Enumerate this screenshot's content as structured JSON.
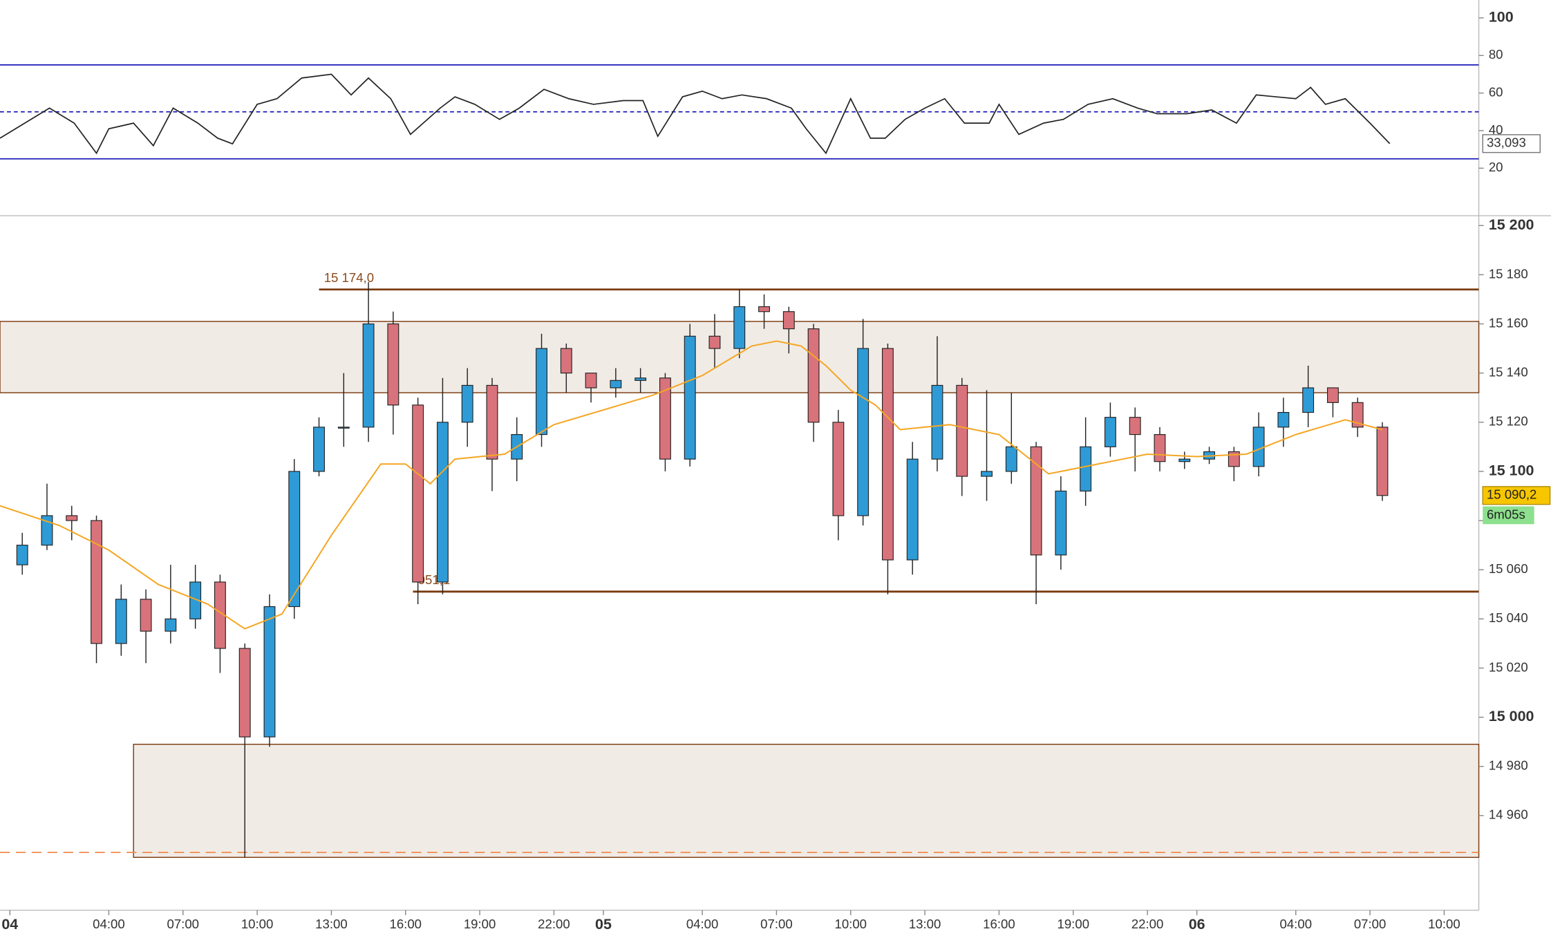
{
  "chart_data": [
    {
      "type": "line",
      "x": [
        -0.4,
        0.6,
        1.6,
        2.6,
        3.5,
        4,
        5,
        5.8,
        6.6,
        7.6,
        8.4,
        9,
        10,
        10.8,
        11.8,
        13,
        13.8,
        14.5,
        15.4,
        16.2,
        17.4,
        18,
        18.8,
        19.8,
        20.6,
        21.6,
        22.6,
        23.6,
        24.8,
        25.6,
        26.2,
        27.2,
        28,
        28.8,
        29.6,
        30.6,
        31.6,
        32.2,
        33,
        34,
        34.8,
        35.4,
        36.2,
        37,
        37.8,
        38.6,
        39.6,
        40,
        40.8,
        41.8,
        42.6,
        43.6,
        44.6,
        45.6,
        46.4,
        47.6,
        48.6,
        49.6,
        50.4,
        51.2,
        52,
        52.6,
        53.2,
        54,
        55,
        55.8
      ],
      "values": [
        36,
        44,
        52,
        44,
        28,
        41,
        44,
        32,
        52,
        44,
        36,
        33,
        54,
        57,
        68,
        70,
        59,
        68,
        57,
        38,
        52,
        58,
        54,
        46,
        52,
        62,
        57,
        54,
        56,
        56,
        37,
        58,
        61,
        57,
        59,
        57,
        52,
        41,
        28,
        57,
        36,
        36,
        46,
        52,
        57,
        44,
        44,
        54,
        38,
        44,
        46,
        54,
        57,
        52,
        49,
        49,
        51,
        44,
        59,
        58,
        57,
        63,
        54,
        57,
        44,
        33.093
      ],
      "color": "#222222",
      "xlim": [
        -0.4,
        59.4
      ],
      "ylim": [
        -5.3,
        109.5
      ],
      "yticks": [
        100,
        80,
        60,
        40,
        20
      ],
      "levels": [
        75,
        50,
        25
      ],
      "level_styles": [
        "solid",
        "dashed",
        "solid"
      ],
      "level_color": "#1a1ab8",
      "last_value": {
        "value": 33.093,
        "label": "33,093"
      }
    },
    {
      "type": "candlestick",
      "x": [
        0.5,
        1.5,
        2.5,
        3.5,
        4.5,
        5.5,
        6.5,
        7.5,
        8.5,
        9.5,
        10.5,
        11.5,
        12.5,
        13.5,
        14.5,
        15.5,
        16.5,
        17.5,
        18.5,
        19.5,
        20.5,
        21.5,
        22.5,
        23.5,
        24.5,
        25.5,
        26.5,
        27.5,
        28.5,
        29.5,
        30.5,
        31.5,
        32.5,
        33.5,
        34.5,
        35.5,
        36.5,
        37.5,
        38.5,
        39.5,
        40.5,
        41.5,
        42.5,
        43.5,
        44.5,
        45.5,
        46.5,
        47.5,
        48.5,
        49.5,
        50.5,
        51.5,
        52.5,
        53.5,
        54.5,
        55.5
      ],
      "open": [
        15062,
        15070,
        15082,
        15080,
        15030,
        15048,
        15035,
        15040,
        15055,
        15028,
        14992,
        15045,
        15100,
        15118,
        15118,
        15160,
        15127,
        15055,
        15120,
        15135,
        15105,
        15115,
        15150,
        15140,
        15134,
        15137,
        15138,
        15105,
        15155,
        15150,
        15167,
        15165,
        15158,
        15120,
        15082,
        15150,
        15064,
        15105,
        15135,
        15098,
        15100,
        15110,
        15066,
        15092,
        15110,
        15122,
        15115,
        15104,
        15105,
        15108,
        15102,
        15118,
        15124,
        15134,
        15128,
        15118
      ],
      "high": [
        15075,
        15095,
        15086,
        15082,
        15054,
        15052,
        15062,
        15062,
        15058,
        15030,
        15050,
        15105,
        15122,
        15140,
        15177,
        15165,
        15130,
        15138,
        15142,
        15138,
        15122,
        15156,
        15152,
        15140,
        15142,
        15142,
        15140,
        15160,
        15164,
        15174,
        15172,
        15167,
        15160,
        15125,
        15162,
        15152,
        15112,
        15155,
        15138,
        15133,
        15132,
        15112,
        15098,
        15122,
        15128,
        15126,
        15118,
        15108,
        15110,
        15110,
        15124,
        15130,
        15143,
        15133,
        15130,
        15120
      ],
      "low": [
        15058,
        15068,
        15072,
        15022,
        15025,
        15022,
        15030,
        15036,
        15018,
        14943,
        14988,
        15040,
        15098,
        15110,
        15112,
        15115,
        15046,
        15050,
        15110,
        15092,
        15096,
        15110,
        15132,
        15128,
        15130,
        15132,
        15100,
        15102,
        15142,
        15146,
        15158,
        15148,
        15112,
        15072,
        15078,
        15050,
        15058,
        15100,
        15090,
        15088,
        15095,
        15046,
        15060,
        15086,
        15106,
        15100,
        15100,
        15101,
        15103,
        15096,
        15098,
        15110,
        15118,
        15122,
        15114,
        15088
      ],
      "close": [
        15070,
        15082,
        15080,
        15030,
        15048,
        15035,
        15040,
        15055,
        15028,
        14992,
        15045,
        15100,
        15118,
        15118,
        15160,
        15127,
        15055,
        15120,
        15135,
        15105,
        15115,
        15150,
        15140,
        15134,
        15137,
        15138,
        15105,
        15155,
        15150,
        15167,
        15165,
        15158,
        15120,
        15082,
        15150,
        15064,
        15105,
        15135,
        15098,
        15100,
        15110,
        15066,
        15092,
        15110,
        15122,
        15115,
        15104,
        15105,
        15108,
        15102,
        15118,
        15124,
        15134,
        15128,
        15118,
        15090.2
      ],
      "up_color": "#2e9bd6",
      "down_color": "#d9737b",
      "ma": {
        "color": "#f5a623",
        "x": [
          -0.4,
          2,
          4,
          6,
          8,
          9.5,
          11,
          12,
          13,
          15,
          16,
          17,
          18,
          20,
          22,
          24,
          26,
          28,
          30,
          31,
          32,
          33,
          34,
          35,
          36,
          38,
          40,
          42,
          44,
          46,
          48,
          50,
          52,
          54,
          55.5
        ],
        "values": [
          15086,
          15078,
          15068,
          15054,
          15046,
          15036,
          15042,
          15058,
          15074,
          15103,
          15103,
          15095,
          15105,
          15107,
          15119,
          15125,
          15131,
          15139,
          15151,
          15153,
          15151,
          15143,
          15133,
          15127,
          15117,
          15119,
          15115,
          15099,
          15103,
          15107,
          15106,
          15107,
          15115,
          15121,
          15117
        ]
      },
      "xlim": [
        -0.4,
        59.4
      ],
      "xticks": [
        {
          "value": 0,
          "label": "04"
        },
        {
          "value": 4,
          "label": "04:00"
        },
        {
          "value": 7,
          "label": "07:00"
        },
        {
          "value": 10,
          "label": "10:00"
        },
        {
          "value": 13,
          "label": "13:00"
        },
        {
          "value": 16,
          "label": "16:00"
        },
        {
          "value": 19,
          "label": "19:00"
        },
        {
          "value": 22,
          "label": "22:00"
        },
        {
          "value": 24,
          "label": "05"
        },
        {
          "value": 28,
          "label": "04:00"
        },
        {
          "value": 31,
          "label": "07:00"
        },
        {
          "value": 34,
          "label": "10:00"
        },
        {
          "value": 37,
          "label": "13:00"
        },
        {
          "value": 40,
          "label": "16:00"
        },
        {
          "value": 43,
          "label": "19:00"
        },
        {
          "value": 46,
          "label": "22:00"
        },
        {
          "value": 48,
          "label": "06"
        },
        {
          "value": 52,
          "label": "04:00"
        },
        {
          "value": 55,
          "label": "07:00"
        },
        {
          "value": 58,
          "label": "10:00"
        }
      ],
      "ylim": [
        14921.5,
        15204
      ],
      "yticks": [
        {
          "value": 15200,
          "label": "15 200"
        },
        {
          "value": 15180,
          "label": "15 180"
        },
        {
          "value": 15160,
          "label": "15 160"
        },
        {
          "value": 15140,
          "label": "15 140"
        },
        {
          "value": 15120,
          "label": "15 120"
        },
        {
          "value": 15100,
          "label": "15 100"
        },
        {
          "value": 15080,
          "label": "15 080"
        },
        {
          "value": 15060,
          "label": "15 060"
        },
        {
          "value": 15040,
          "label": "15 040"
        },
        {
          "value": 15020,
          "label": "15 020"
        },
        {
          "value": 15000,
          "label": "15 000"
        },
        {
          "value": 14980,
          "label": "14 980"
        },
        {
          "value": 14960,
          "label": "14 960"
        }
      ],
      "levels": [
        {
          "value": 15174,
          "label": "15 174,0",
          "start": 12.5
        },
        {
          "value": 15051.1,
          "label": "051,1",
          "start": 16.3
        }
      ],
      "level_color": "#7a3a0e",
      "zones": [
        {
          "top": 15161,
          "bottom": 15132,
          "start": -0.4
        },
        {
          "top": 14989,
          "bottom": 14943,
          "start": 5
        }
      ],
      "zone_fill": "#f1ebe6",
      "dashed_level": 14945,
      "dashed_color": "#f08a4b",
      "last_price": {
        "value": 15090.2,
        "label": "15 090,2"
      },
      "countdown": "6m05s"
    }
  ]
}
